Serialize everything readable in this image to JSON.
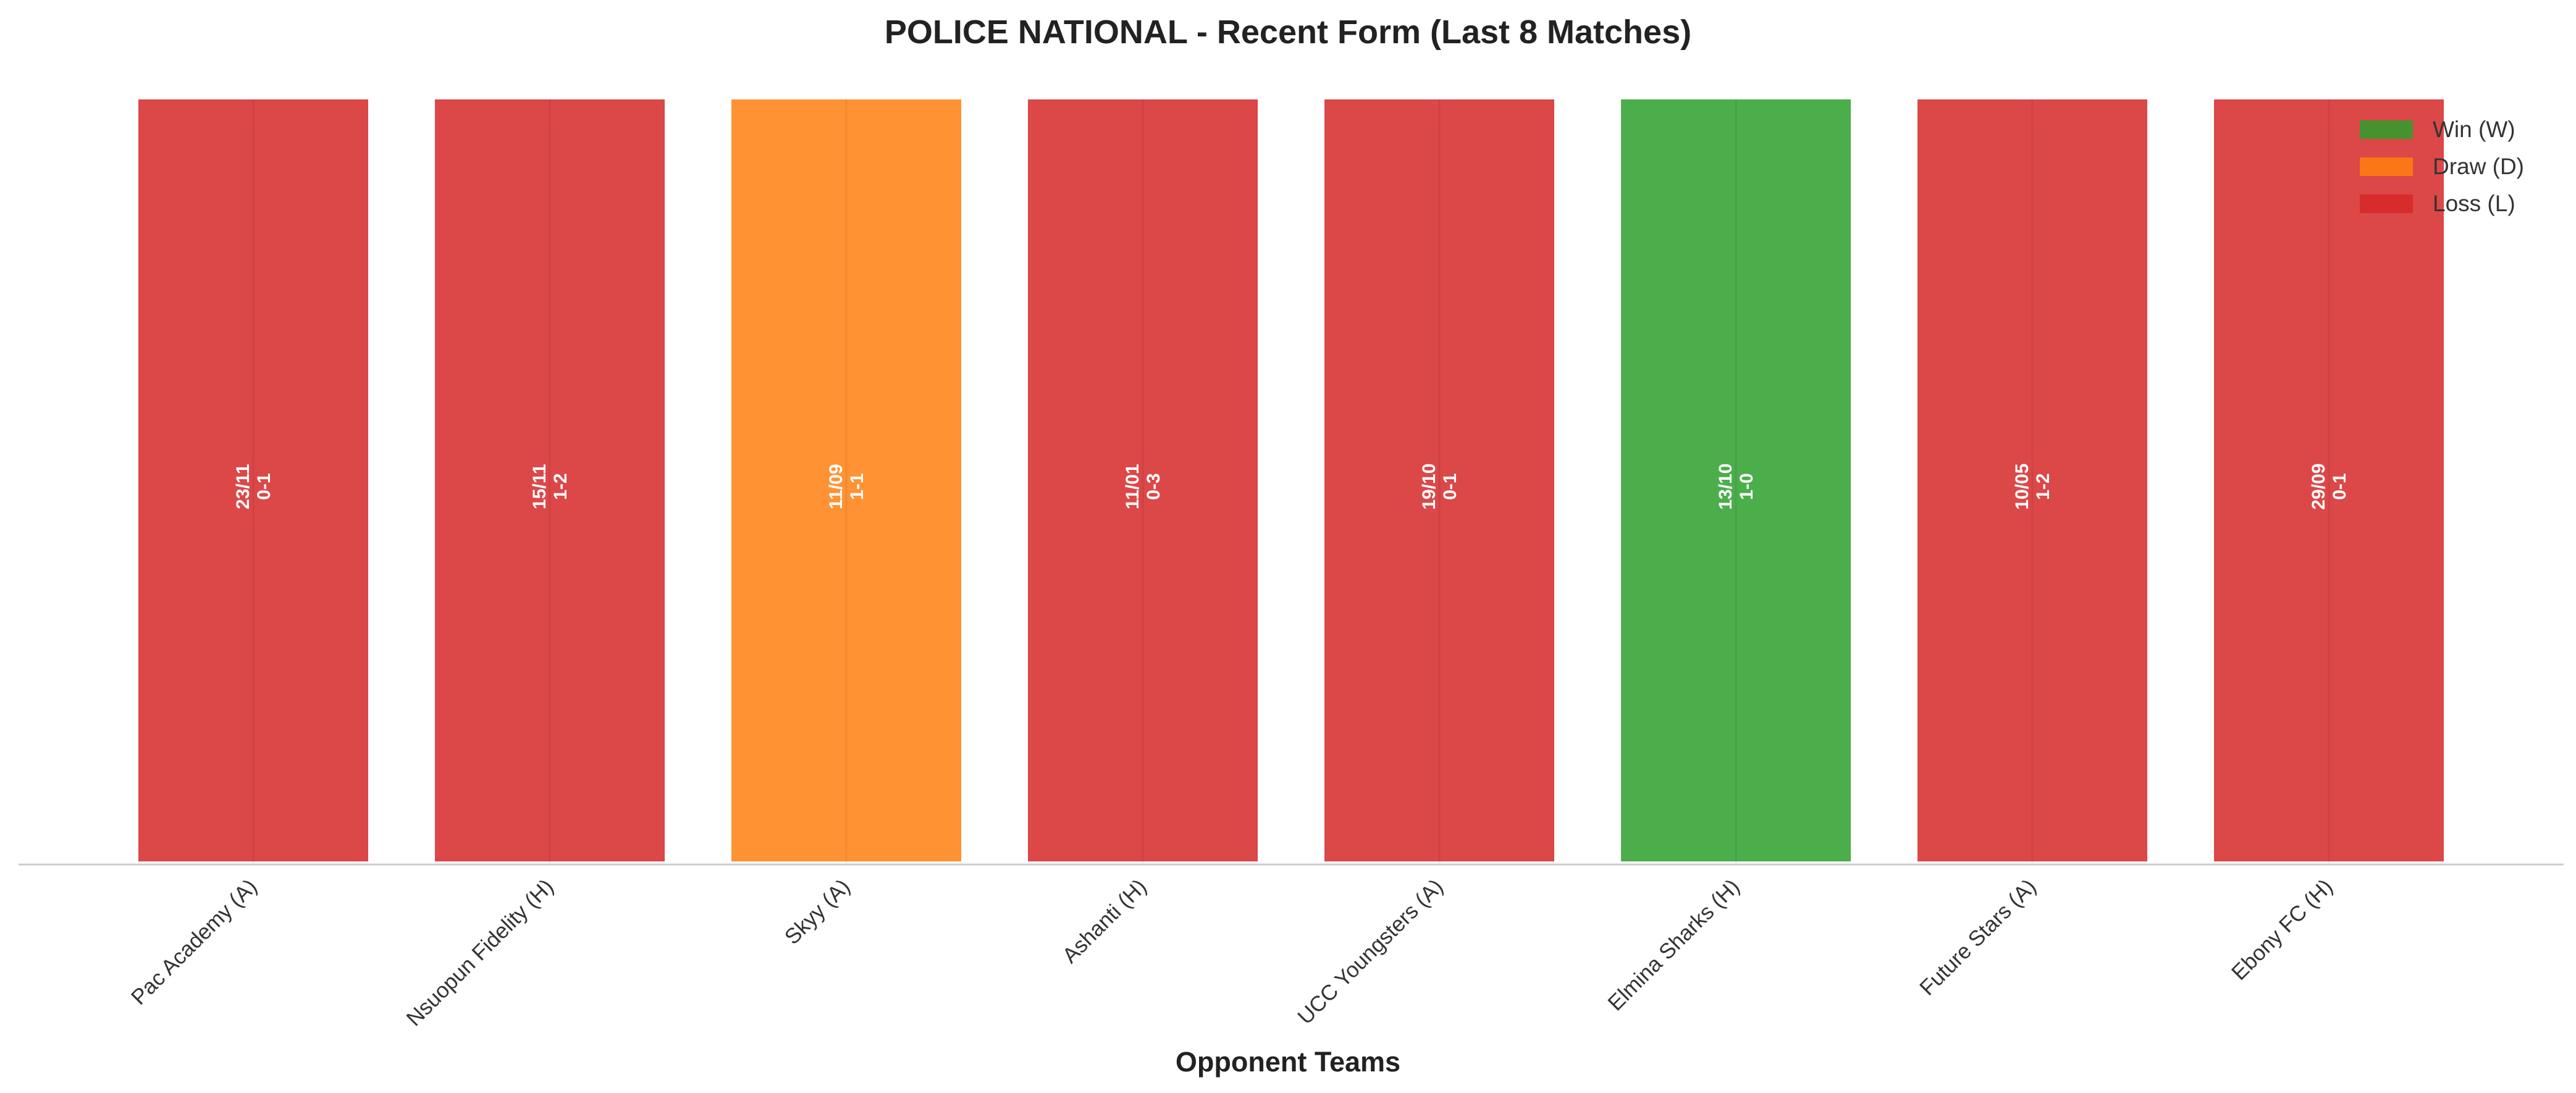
{
  "chart_data": {
    "type": "bar",
    "title": "POLICE NATIONAL - Recent Form (Last 8 Matches)",
    "xlabel": "Opponent Teams",
    "ylabel": "",
    "ylim": [
      0,
      1
    ],
    "grid": false,
    "legend_placement": "top-right",
    "legend": [
      {
        "key": "W",
        "label": "Win (W)",
        "color": "#2ca02c"
      },
      {
        "key": "D",
        "label": "Draw (D)",
        "color": "#ff7f0e"
      },
      {
        "key": "L",
        "label": "Loss (L)",
        "color": "#d62728"
      }
    ],
    "categories": [
      "Pac Academy (A)",
      "Nsuopun Fidelity (H)",
      "Skyy (A)",
      "Ashanti (H)",
      "UCC Youngsters (A)",
      "Elmina Sharks (H)",
      "Future Stars (A)",
      "Ebony FC (H)"
    ],
    "values": [
      1,
      1,
      1,
      1,
      1,
      1,
      1,
      1
    ],
    "results": [
      "L",
      "L",
      "D",
      "L",
      "L",
      "W",
      "L",
      "L"
    ],
    "dates": [
      "23/11",
      "15/11",
      "11/09",
      "11/01",
      "19/10",
      "13/10",
      "10/05",
      "29/09"
    ],
    "scores": [
      "0-1",
      "1-2",
      "1-1",
      "0-3",
      "0-1",
      "1-0",
      "1-2",
      "0-1"
    ]
  }
}
